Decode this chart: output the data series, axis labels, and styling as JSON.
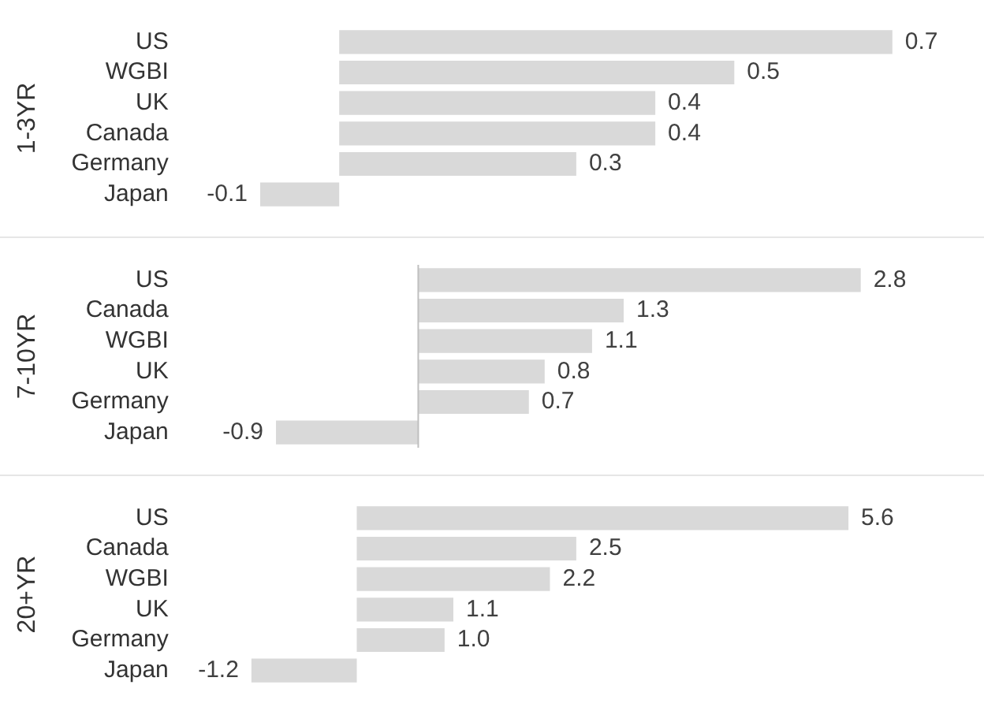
{
  "chart_data": [
    {
      "type": "bar",
      "orientation": "horizontal",
      "ylabel": "1-3YR",
      "categories": [
        "US",
        "WGBI",
        "UK",
        "Canada",
        "Germany",
        "Japan"
      ],
      "values": [
        0.7,
        0.5,
        0.4,
        0.4,
        0.3,
        -0.1
      ],
      "value_labels": [
        "0.7",
        "0.5",
        "0.4",
        "0.4",
        "0.3",
        "-0.1"
      ],
      "color": "#d9d9d9",
      "tick_labels": "y"
    },
    {
      "type": "bar",
      "orientation": "horizontal",
      "ylabel": "7-10YR",
      "categories": [
        "US",
        "Canada",
        "WGBI",
        "UK",
        "Germany",
        "Japan"
      ],
      "values": [
        2.8,
        1.3,
        1.1,
        0.8,
        0.7,
        -0.9
      ],
      "value_labels": [
        "2.8",
        "1.3",
        "1.1",
        "0.8",
        "0.7",
        "-0.9"
      ],
      "color": "#d9d9d9",
      "tick_labels": "y",
      "ref_lines": [
        {
          "axis": "x",
          "value": 0,
          "color": "#bfbfbf"
        }
      ]
    },
    {
      "type": "bar",
      "orientation": "horizontal",
      "ylabel": "20+YR",
      "categories": [
        "US",
        "Canada",
        "WGBI",
        "UK",
        "Germany",
        "Japan"
      ],
      "values": [
        5.6,
        2.5,
        2.2,
        1.1,
        1.0,
        -1.2
      ],
      "value_labels": [
        "5.6",
        "2.5",
        "2.2",
        "1.1",
        "1.0",
        "-1.2"
      ],
      "color": "#d9d9d9",
      "tick_labels": "y"
    }
  ]
}
